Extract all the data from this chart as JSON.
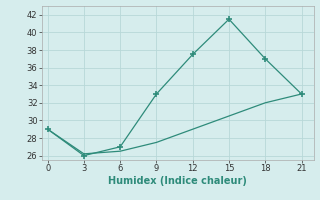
{
  "xlabel": "Humidex (Indice chaleur)",
  "line1_x": [
    0,
    3,
    6,
    9,
    12,
    15,
    18,
    21
  ],
  "line1_y": [
    29,
    26,
    27,
    33,
    37.5,
    41.5,
    37,
    33
  ],
  "line2_x": [
    0,
    3,
    6,
    9,
    12,
    15,
    18,
    21
  ],
  "line2_y": [
    29,
    26.2,
    26.5,
    27.5,
    29.0,
    30.5,
    32.0,
    33
  ],
  "line_color": "#2e8b7a",
  "bg_color": "#d6eded",
  "grid_color": "#b8d8d8",
  "xlim": [
    -0.5,
    22
  ],
  "ylim": [
    25.5,
    43
  ],
  "xticks": [
    0,
    3,
    6,
    9,
    12,
    15,
    18,
    21
  ],
  "yticks": [
    26,
    28,
    30,
    32,
    34,
    36,
    38,
    40,
    42
  ],
  "marker": "+"
}
